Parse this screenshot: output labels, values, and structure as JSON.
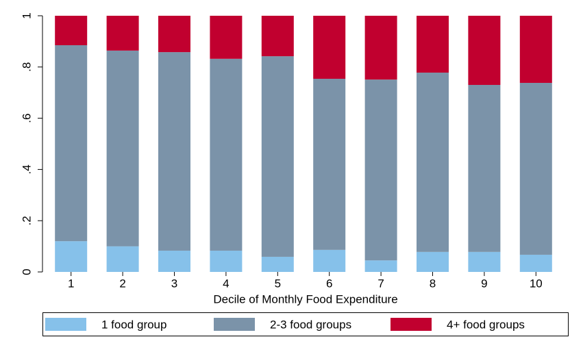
{
  "chart_data": {
    "type": "stacked-bar",
    "x_label": "Decile of Monthly Food Expenditure",
    "categories": [
      "1",
      "2",
      "3",
      "4",
      "5",
      "6",
      "7",
      "8",
      "9",
      "10"
    ],
    "series": [
      {
        "name": "1 food group",
        "color": "#86c1ea",
        "values": [
          0.12,
          0.1,
          0.083,
          0.083,
          0.059,
          0.086,
          0.045,
          0.078,
          0.078,
          0.067
        ]
      },
      {
        "name": "2-3 food groups",
        "color": "#7b93a9",
        "values": [
          0.765,
          0.764,
          0.775,
          0.749,
          0.783,
          0.668,
          0.706,
          0.7,
          0.652,
          0.671
        ]
      },
      {
        "name": "4+ food groups",
        "color": "#c1002f",
        "values": [
          0.115,
          0.136,
          0.142,
          0.168,
          0.158,
          0.246,
          0.249,
          0.222,
          0.27,
          0.262
        ]
      }
    ],
    "ylim": [
      0,
      1
    ],
    "yticks": [
      0,
      {
        "value": 0.2,
        "label": ".2"
      },
      {
        "value": 0.4,
        "label": ".4"
      },
      {
        "value": 0.6,
        "label": ".6"
      },
      {
        "value": 0.8,
        "label": ".8"
      },
      1
    ],
    "grid": false,
    "legend": "bottom"
  }
}
